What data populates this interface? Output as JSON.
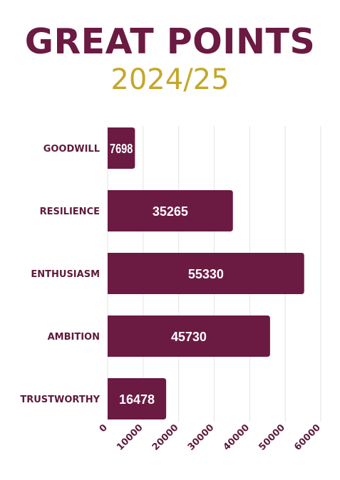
{
  "header": {
    "title": "GREAT POINTS",
    "subtitle": "2024/25"
  },
  "colors": {
    "bar": "#6b1a42",
    "title": "#6b1a42",
    "subtitle": "#c4a72a",
    "category_label": "#5e1a3b",
    "tick_label": "#5e1a3b",
    "grid": "#e6e3e5",
    "bar_label": "#ffffff"
  },
  "chart_data": {
    "type": "bar",
    "orientation": "horizontal",
    "categories": [
      "GOODWILL",
      "RESILIENCE",
      "ENTHUSIASM",
      "AMBITION",
      "TRUSTWORTHY"
    ],
    "values": [
      7698,
      35265,
      55330,
      45730,
      16478
    ],
    "data_labels": [
      "7698",
      "35265",
      "55330",
      "45730",
      "16478"
    ],
    "xlim": [
      0,
      60000
    ],
    "xticks": [
      0,
      10000,
      20000,
      30000,
      40000,
      50000,
      60000
    ],
    "xtick_labels": [
      "0",
      "10000",
      "20000",
      "30000",
      "40000",
      "50000",
      "60000"
    ],
    "grid": true,
    "legend": false
  }
}
